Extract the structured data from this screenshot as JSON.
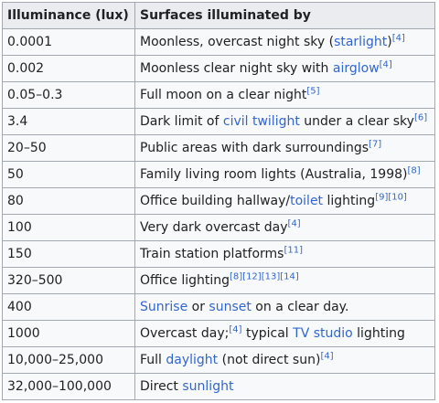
{
  "table": {
    "headers": [
      "Illuminance (lux)",
      "Surfaces illuminated by"
    ],
    "rows": [
      {
        "lux": "0.0001",
        "desc": [
          {
            "t": "Moonless, overcast night sky ("
          },
          {
            "t": "starlight",
            "link": true
          },
          {
            "t": ")"
          },
          {
            "t": "[4]",
            "sup": true
          }
        ]
      },
      {
        "lux": "0.002",
        "desc": [
          {
            "t": "Moonless clear night sky with "
          },
          {
            "t": "airglow",
            "link": true
          },
          {
            "t": "[4]",
            "sup": true
          }
        ]
      },
      {
        "lux": "0.05–0.3",
        "desc": [
          {
            "t": "Full moon on a clear night"
          },
          {
            "t": "[5]",
            "sup": true
          }
        ]
      },
      {
        "lux": "3.4",
        "desc": [
          {
            "t": "Dark limit of "
          },
          {
            "t": "civil twilight",
            "link": true
          },
          {
            "t": " under a clear sky"
          },
          {
            "t": "[6]",
            "sup": true
          }
        ]
      },
      {
        "lux": "20–50",
        "desc": [
          {
            "t": "Public areas with dark surroundings"
          },
          {
            "t": "[7]",
            "sup": true
          }
        ]
      },
      {
        "lux": "50",
        "desc": [
          {
            "t": "Family living room lights (Australia, 1998)"
          },
          {
            "t": "[8]",
            "sup": true
          }
        ]
      },
      {
        "lux": "80",
        "desc": [
          {
            "t": "Office building hallway/"
          },
          {
            "t": "toilet",
            "link": true
          },
          {
            "t": " lighting"
          },
          {
            "t": "[9][10]",
            "sup": true
          }
        ]
      },
      {
        "lux": "100",
        "desc": [
          {
            "t": "Very dark overcast day"
          },
          {
            "t": "[4]",
            "sup": true
          }
        ]
      },
      {
        "lux": "150",
        "desc": [
          {
            "t": "Train station platforms"
          },
          {
            "t": "[11]",
            "sup": true
          }
        ]
      },
      {
        "lux": "320–500",
        "desc": [
          {
            "t": "Office lighting"
          },
          {
            "t": "[8][12][13][14]",
            "sup": true
          }
        ]
      },
      {
        "lux": "400",
        "desc": [
          {
            "t": "Sunrise",
            "link": true
          },
          {
            "t": " or "
          },
          {
            "t": "sunset",
            "link": true
          },
          {
            "t": " on a clear day."
          }
        ]
      },
      {
        "lux": "1000",
        "desc": [
          {
            "t": "Overcast day;"
          },
          {
            "t": "[4]",
            "sup": true
          },
          {
            "t": " typical "
          },
          {
            "t": "TV studio",
            "link": true
          },
          {
            "t": " lighting"
          }
        ]
      },
      {
        "lux": "10,000–25,000",
        "desc": [
          {
            "t": "Full "
          },
          {
            "t": "daylight",
            "link": true
          },
          {
            "t": " (not direct sun)"
          },
          {
            "t": "[4]",
            "sup": true
          }
        ]
      },
      {
        "lux": "32,000–100,000",
        "desc": [
          {
            "t": "Direct "
          },
          {
            "t": "sunlight",
            "link": true
          }
        ]
      }
    ]
  }
}
